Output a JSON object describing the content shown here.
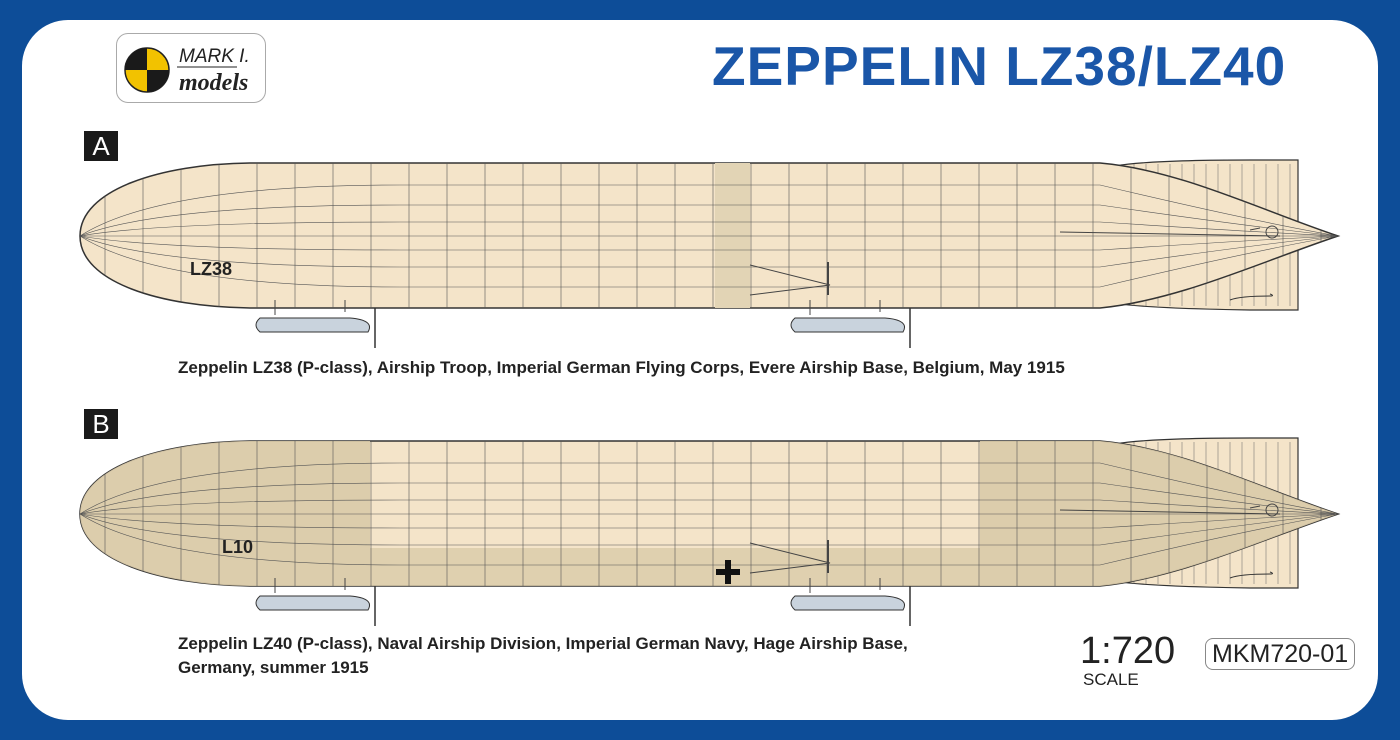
{
  "brand": {
    "line1": "MARK I.",
    "line2": "models",
    "colors": [
      "#1a1a1a",
      "#f2c200"
    ]
  },
  "title": "ZEPPELIN LZ38/LZ40",
  "profiles": [
    {
      "letter": "A",
      "marking": "LZ38",
      "caption": [
        "Zeppelin LZ38 (P-class), Airship Troop, Imperial German Flying Corps, Evere Airship Base, Belgium, May 1915"
      ],
      "hull_color": "#f4e4c9",
      "camouflage": false,
      "cross": false
    },
    {
      "letter": "B",
      "marking": "L10",
      "caption": [
        "Zeppelin LZ40 (P-class), Naval Airship Division, Imperial German Navy, Hage Airship Base,",
        "Germany, summer 1915"
      ],
      "hull_color": "#f4e4c9",
      "shade_color": "#d9caa9",
      "camouflage": true,
      "cross": true
    }
  ],
  "scale": {
    "value": "1:720",
    "label": "SCALE"
  },
  "product_code": "MKM720-01",
  "frame_color": "#0d4d98"
}
